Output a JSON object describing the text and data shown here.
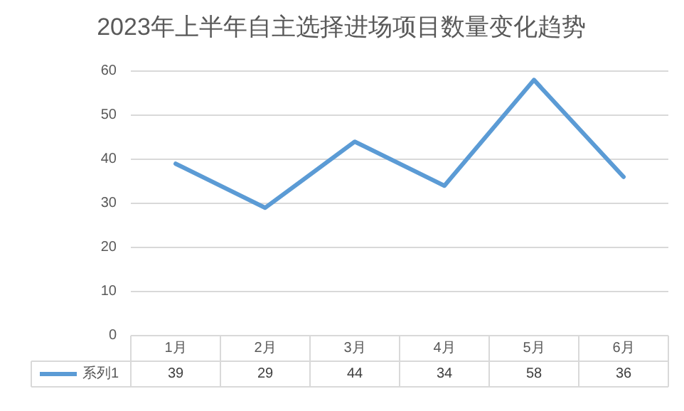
{
  "chart_data": {
    "type": "line",
    "title": "2023年上半年自主选择进场项目数量变化趋势",
    "categories": [
      "1月",
      "2月",
      "3月",
      "4月",
      "5月",
      "6月"
    ],
    "series": [
      {
        "name": "系列1",
        "color": "#5b9bd5",
        "values": [
          39,
          29,
          44,
          34,
          58,
          36
        ]
      }
    ],
    "ylim": [
      0,
      60
    ],
    "yticks": [
      0,
      10,
      20,
      30,
      40,
      50,
      60
    ],
    "grid": "y",
    "data_labels": true,
    "legend": "bottom"
  }
}
